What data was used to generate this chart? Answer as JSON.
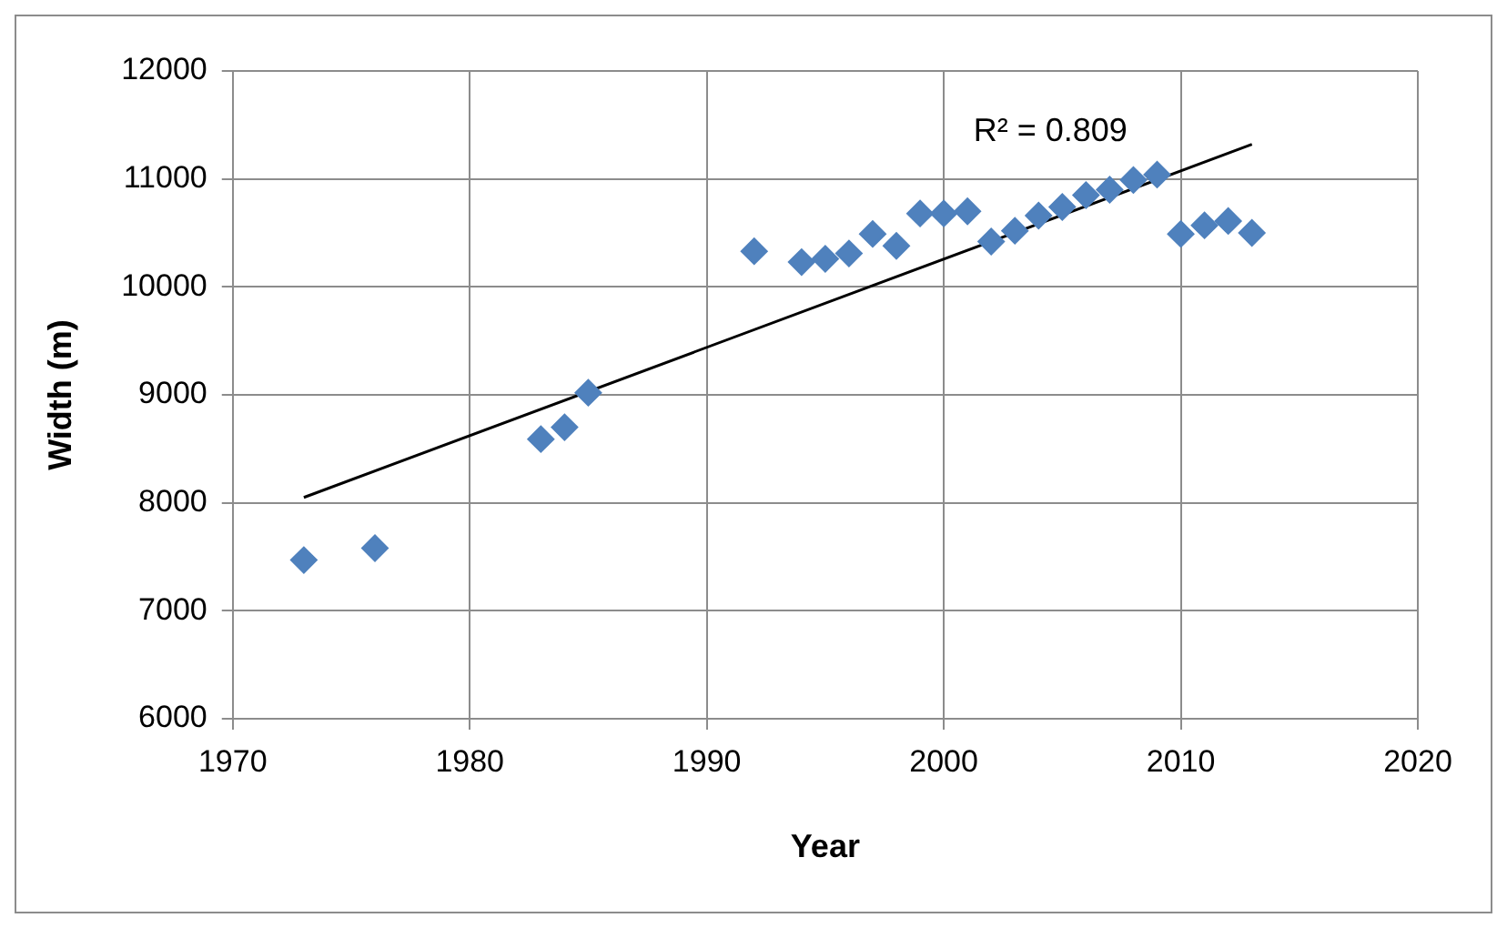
{
  "chart_data": {
    "type": "scatter",
    "xlabel": "Year",
    "ylabel": "Width (m)",
    "xlim": [
      1970,
      2020
    ],
    "xticks": [
      1970,
      1980,
      1990,
      2000,
      2010,
      2020
    ],
    "ylim": [
      6000,
      12000
    ],
    "yticks": [
      6000,
      7000,
      8000,
      9000,
      10000,
      11000,
      12000
    ],
    "grid": true,
    "legend": false,
    "marker": "diamond",
    "series": [
      {
        "color": "#4f81bd",
        "x": [
          1973,
          1976,
          1983,
          1984,
          1985,
          1992,
          1994,
          1995,
          1996,
          1997,
          1998,
          1999,
          2000,
          2001,
          2002,
          2003,
          2004,
          2005,
          2006,
          2007,
          2008,
          2009,
          2010,
          2011,
          2012,
          2013
        ],
        "values": [
          7470,
          7580,
          8590,
          8700,
          9020,
          10330,
          10230,
          10260,
          10310,
          10490,
          10380,
          10680,
          10680,
          10700,
          10420,
          10520,
          10660,
          10740,
          10850,
          10900,
          10990,
          11040,
          10490,
          10570,
          10610,
          10500
        ]
      },
      {
        "type": "line",
        "color": "#000000",
        "marker": "none",
        "line_style": "solid",
        "x": [
          1973,
          2013
        ],
        "values": [
          8050,
          11320
        ]
      }
    ],
    "annotations": [
      "R² = 0.809"
    ]
  }
}
